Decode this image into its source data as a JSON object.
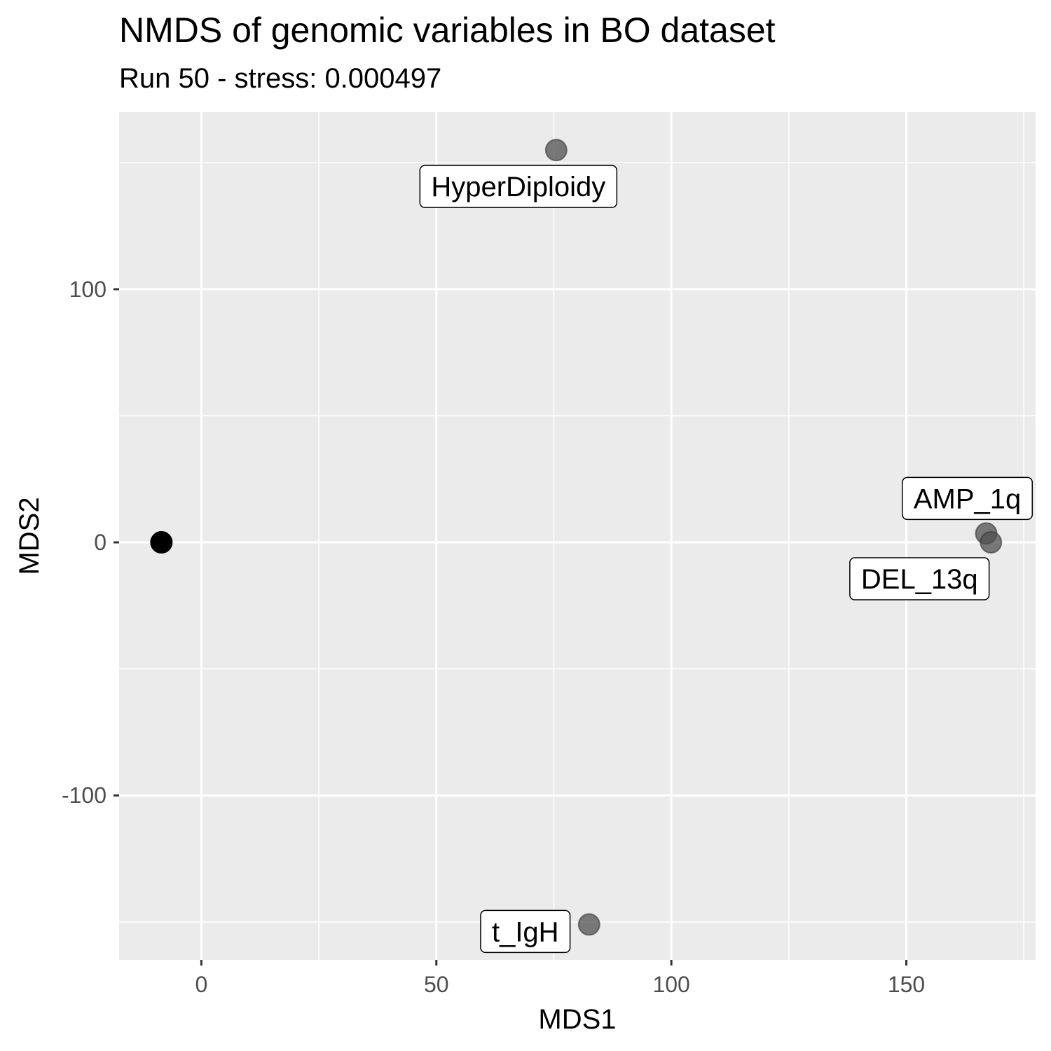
{
  "chart_data": {
    "type": "scatter",
    "title": "NMDS of genomic variables in BO dataset",
    "subtitle": "Run 50 - stress: 0.000497",
    "xlabel": "MDS1",
    "ylabel": "MDS2",
    "xlim": [
      -17.5,
      177.5
    ],
    "ylim": [
      -165,
      170
    ],
    "x_ticks": [
      0,
      50,
      100,
      150
    ],
    "y_ticks": [
      -100,
      0,
      100
    ],
    "grid": true,
    "points": [
      {
        "x": -8.5,
        "y": 0,
        "color": "#000000"
      },
      {
        "x": 75.5,
        "y": 155,
        "label": "HyperDiploidy",
        "color": "#505050"
      },
      {
        "x": 167,
        "y": 3.5,
        "label": "AMP_1q",
        "color": "#505050"
      },
      {
        "x": 168,
        "y": 0,
        "label": "DEL_13q",
        "color": "#505050"
      },
      {
        "x": 82.5,
        "y": -151,
        "label": "t_IgH",
        "color": "#505050"
      }
    ]
  }
}
